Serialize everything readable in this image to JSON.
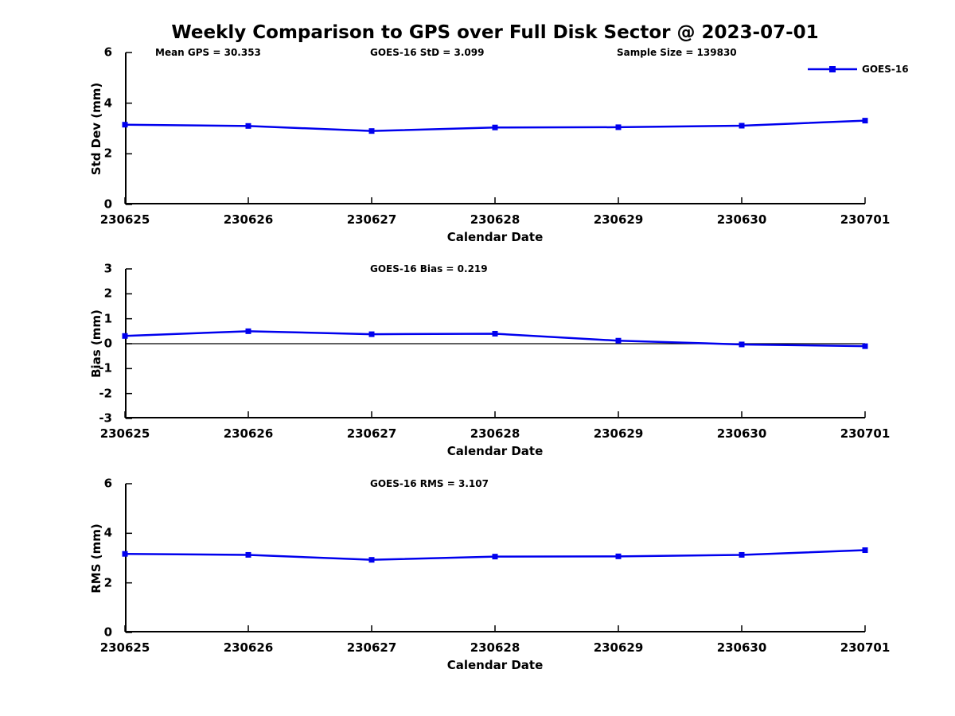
{
  "title": "Weekly Comparison to GPS over Full Disk Sector @ 2023-07-01",
  "legend": {
    "label": "GOES-16",
    "marker": "square"
  },
  "colors": {
    "line": "#0000EE",
    "axis": "#000000",
    "text": "#000000",
    "background": "#FFFFFF"
  },
  "chart_data": [
    {
      "type": "line",
      "ylabel": "Std Dev (mm)",
      "xlabel": "Calendar Date",
      "categories": [
        "230625",
        "230626",
        "230627",
        "230628",
        "230629",
        "230630",
        "230701"
      ],
      "series": [
        {
          "name": "GOES-16",
          "values": [
            3.15,
            3.1,
            2.9,
            3.04,
            3.05,
            3.11,
            3.31
          ]
        }
      ],
      "ylim": [
        0,
        6
      ],
      "yticks": [
        0,
        2,
        4,
        6
      ],
      "zero_line": false,
      "marker": "square",
      "grid": false,
      "legend_position": "top-right-inside",
      "annotations": [
        "Mean GPS = 30.353",
        "GOES-16 StD = 3.099",
        "Sample Size = 139830"
      ]
    },
    {
      "type": "line",
      "ylabel": "Bias (mm)",
      "xlabel": "Calendar Date",
      "categories": [
        "230625",
        "230626",
        "230627",
        "230628",
        "230629",
        "230630",
        "230701"
      ],
      "series": [
        {
          "name": "GOES-16",
          "values": [
            0.31,
            0.5,
            0.38,
            0.4,
            0.12,
            -0.03,
            -0.1
          ]
        }
      ],
      "ylim": [
        -3,
        3
      ],
      "yticks": [
        3,
        2,
        1,
        0,
        -1,
        -2,
        -3
      ],
      "zero_line": true,
      "marker": "square",
      "grid": false,
      "annotations": [
        "GOES-16 Bias  = 0.219"
      ]
    },
    {
      "type": "line",
      "ylabel": "RMS (mm)",
      "xlabel": "Calendar Date",
      "categories": [
        "230625",
        "230626",
        "230627",
        "230628",
        "230629",
        "230630",
        "230701"
      ],
      "series": [
        {
          "name": "GOES-16",
          "values": [
            3.17,
            3.13,
            2.93,
            3.06,
            3.07,
            3.13,
            3.32
          ]
        }
      ],
      "ylim": [
        0,
        6
      ],
      "yticks": [
        0,
        2,
        4,
        6
      ],
      "zero_line": false,
      "marker": "square",
      "grid": false,
      "annotations": [
        "GOES-16 RMS = 3.107"
      ]
    }
  ]
}
